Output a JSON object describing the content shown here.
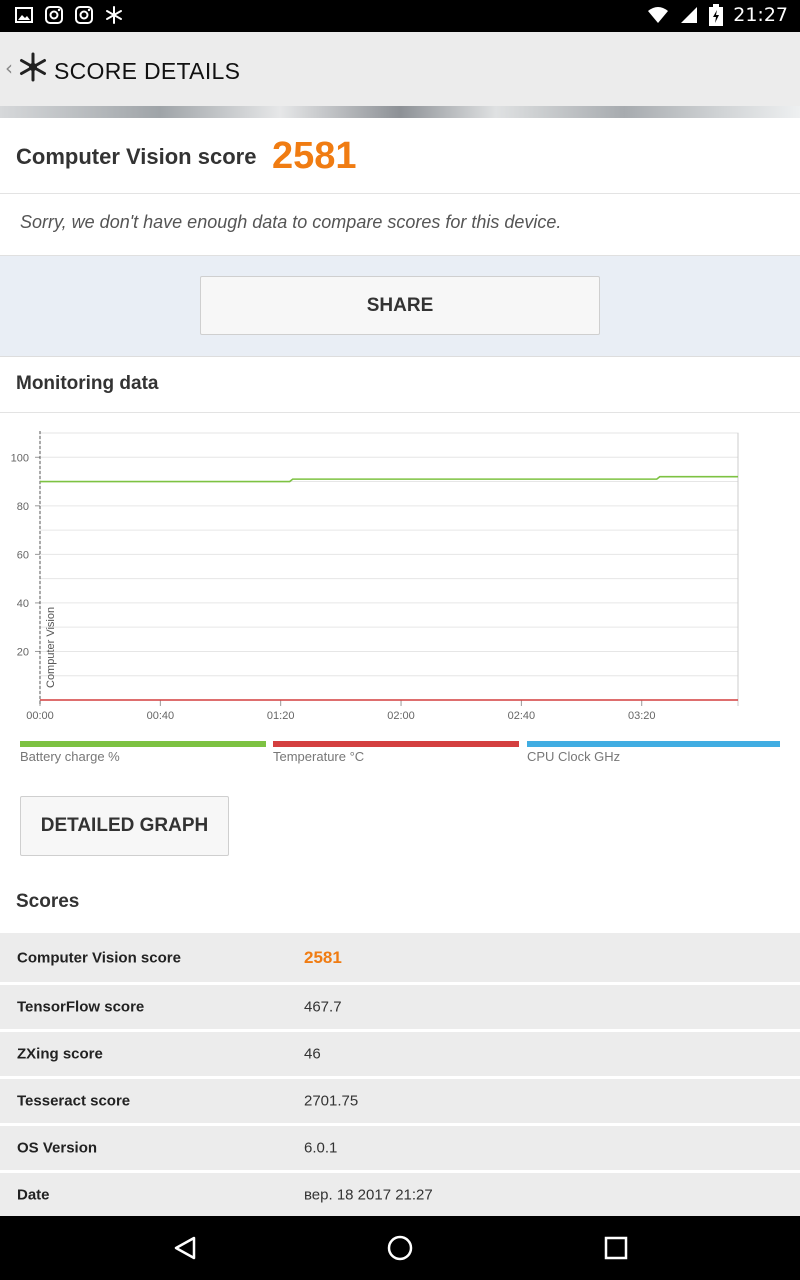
{
  "status_bar": {
    "time": "21:27",
    "left_icons": [
      "image-icon",
      "instagram-icon",
      "instagram-icon",
      "snowflake-icon"
    ],
    "right_icons": [
      "wifi-icon",
      "signal-icon",
      "battery-icon"
    ]
  },
  "app_bar": {
    "title": "SCORE DETAILS"
  },
  "score": {
    "label": "Computer Vision score",
    "value": "2581",
    "note": "Sorry, we don't have enough data to compare scores for this device."
  },
  "share": {
    "label": "SHARE"
  },
  "monitoring": {
    "title": "Monitoring data",
    "detail_button": "DETAILED GRAPH"
  },
  "chart_data": {
    "type": "line",
    "inline_label": "Computer Vision",
    "x_ticks": [
      "00:00",
      "00:40",
      "01:20",
      "02:00",
      "02:40",
      "03:20"
    ],
    "y_ticks": [
      "100",
      "80",
      "60",
      "40",
      "20"
    ],
    "ylim": [
      0,
      110
    ],
    "xlim": [
      0,
      232
    ],
    "grid": true,
    "legend_position": "bottom",
    "series": [
      {
        "name": "Battery charge %",
        "color": "#7dc242",
        "x": [
          0,
          83,
          84,
          205,
          206,
          232
        ],
        "y": [
          90,
          90,
          91,
          91,
          92,
          92
        ]
      },
      {
        "name": "Temperature °C",
        "color": "#d43f3f",
        "x": [
          0,
          232
        ],
        "y": [
          0,
          0
        ]
      },
      {
        "name": "CPU Clock GHz",
        "color": "#41ade2",
        "x": [],
        "y": []
      }
    ]
  },
  "scores": {
    "title": "Scores",
    "rows": [
      {
        "key": "Computer Vision score",
        "value": "2581"
      },
      {
        "key": "TensorFlow score",
        "value": "467.7"
      },
      {
        "key": "ZXing score",
        "value": "46"
      },
      {
        "key": "Tesseract score",
        "value": "2701.75"
      },
      {
        "key": "OS Version",
        "value": "6.0.1"
      },
      {
        "key": "Date",
        "value": "вер. 18 2017 21:27"
      }
    ]
  },
  "nav_bar": {
    "buttons": [
      "back-icon",
      "home-icon",
      "recents-icon"
    ]
  }
}
